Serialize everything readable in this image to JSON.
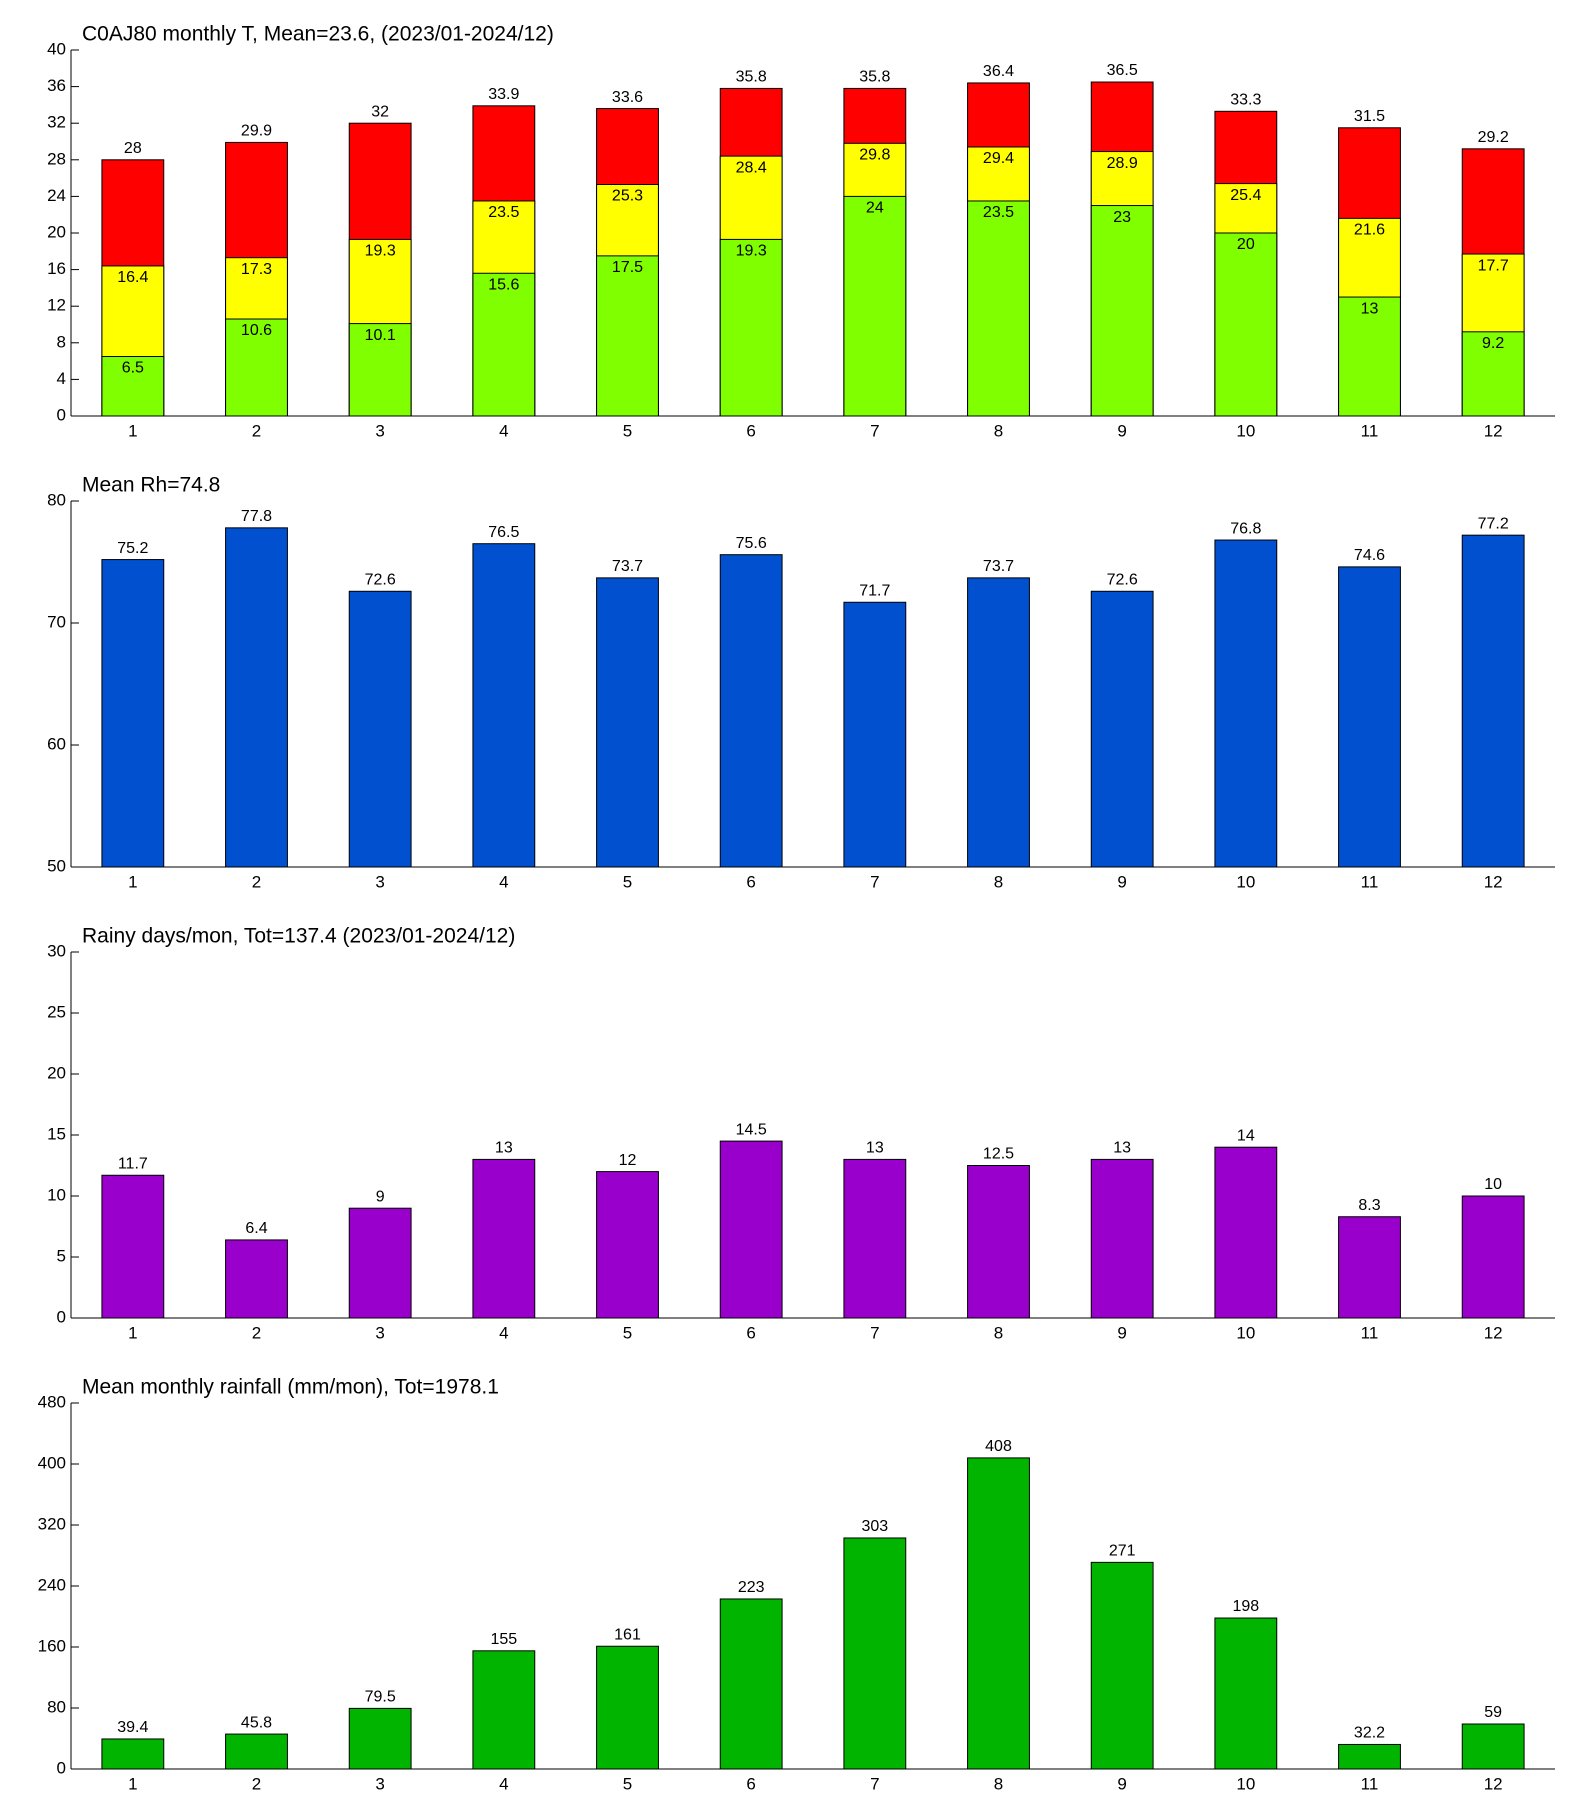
{
  "chart_data": [
    {
      "type": "bar",
      "barmode": "overlay",
      "title": "C0AJ80 monthly T, Mean=23.6, (2023/01-2024/12)",
      "categories": [
        "1",
        "2",
        "3",
        "4",
        "5",
        "6",
        "7",
        "8",
        "9",
        "10",
        "11",
        "12"
      ],
      "series": [
        {
          "color": "#ff0000",
          "values": [
            28,
            29.9,
            32,
            33.9,
            33.6,
            35.8,
            35.8,
            36.4,
            36.5,
            33.3,
            31.5,
            29.2
          ]
        },
        {
          "color": "#ffff00",
          "values": [
            16.4,
            17.3,
            19.3,
            23.5,
            25.3,
            28.4,
            29.8,
            29.4,
            28.9,
            25.4,
            21.6,
            17.7
          ]
        },
        {
          "color": "#80ff00",
          "values": [
            6.5,
            10.6,
            10.1,
            15.6,
            17.5,
            19.3,
            24,
            23.5,
            23,
            20,
            13,
            9.2
          ]
        }
      ],
      "ylim": [
        0,
        40
      ],
      "yticks": [
        0,
        4,
        8,
        12,
        16,
        20,
        24,
        28,
        32,
        36,
        40
      ]
    },
    {
      "type": "bar",
      "title": "Mean Rh=74.8",
      "categories": [
        "1",
        "2",
        "3",
        "4",
        "5",
        "6",
        "7",
        "8",
        "9",
        "10",
        "11",
        "12"
      ],
      "series": [
        {
          "color": "#0050d0",
          "values": [
            75.2,
            77.8,
            72.6,
            76.5,
            73.7,
            75.6,
            71.7,
            73.7,
            72.6,
            76.8,
            74.6,
            77.2
          ]
        }
      ],
      "ylim": [
        50,
        80
      ],
      "yticks": [
        50,
        60,
        70,
        80
      ]
    },
    {
      "type": "bar",
      "title": "Rainy days/mon, Tot=137.4 (2023/01-2024/12)",
      "categories": [
        "1",
        "2",
        "3",
        "4",
        "5",
        "6",
        "7",
        "8",
        "9",
        "10",
        "11",
        "12"
      ],
      "series": [
        {
          "color": "#9900cc",
          "values": [
            11.7,
            6.4,
            9,
            13,
            12,
            14.5,
            13,
            12.5,
            13,
            14,
            8.3,
            10
          ]
        }
      ],
      "ylim": [
        0,
        30
      ],
      "yticks": [
        0,
        5,
        10,
        15,
        20,
        25,
        30
      ]
    },
    {
      "type": "bar",
      "title": "Mean monthly rainfall (mm/mon), Tot=1978.1",
      "categories": [
        "1",
        "2",
        "3",
        "4",
        "5",
        "6",
        "7",
        "8",
        "9",
        "10",
        "11",
        "12"
      ],
      "series": [
        {
          "color": "#00b400",
          "values": [
            39.4,
            45.8,
            79.5,
            155,
            161,
            223,
            303,
            408,
            271,
            198,
            32.2,
            59
          ]
        }
      ],
      "ylim": [
        0,
        480
      ],
      "yticks": [
        0,
        80,
        160,
        240,
        320,
        400,
        480
      ]
    }
  ]
}
